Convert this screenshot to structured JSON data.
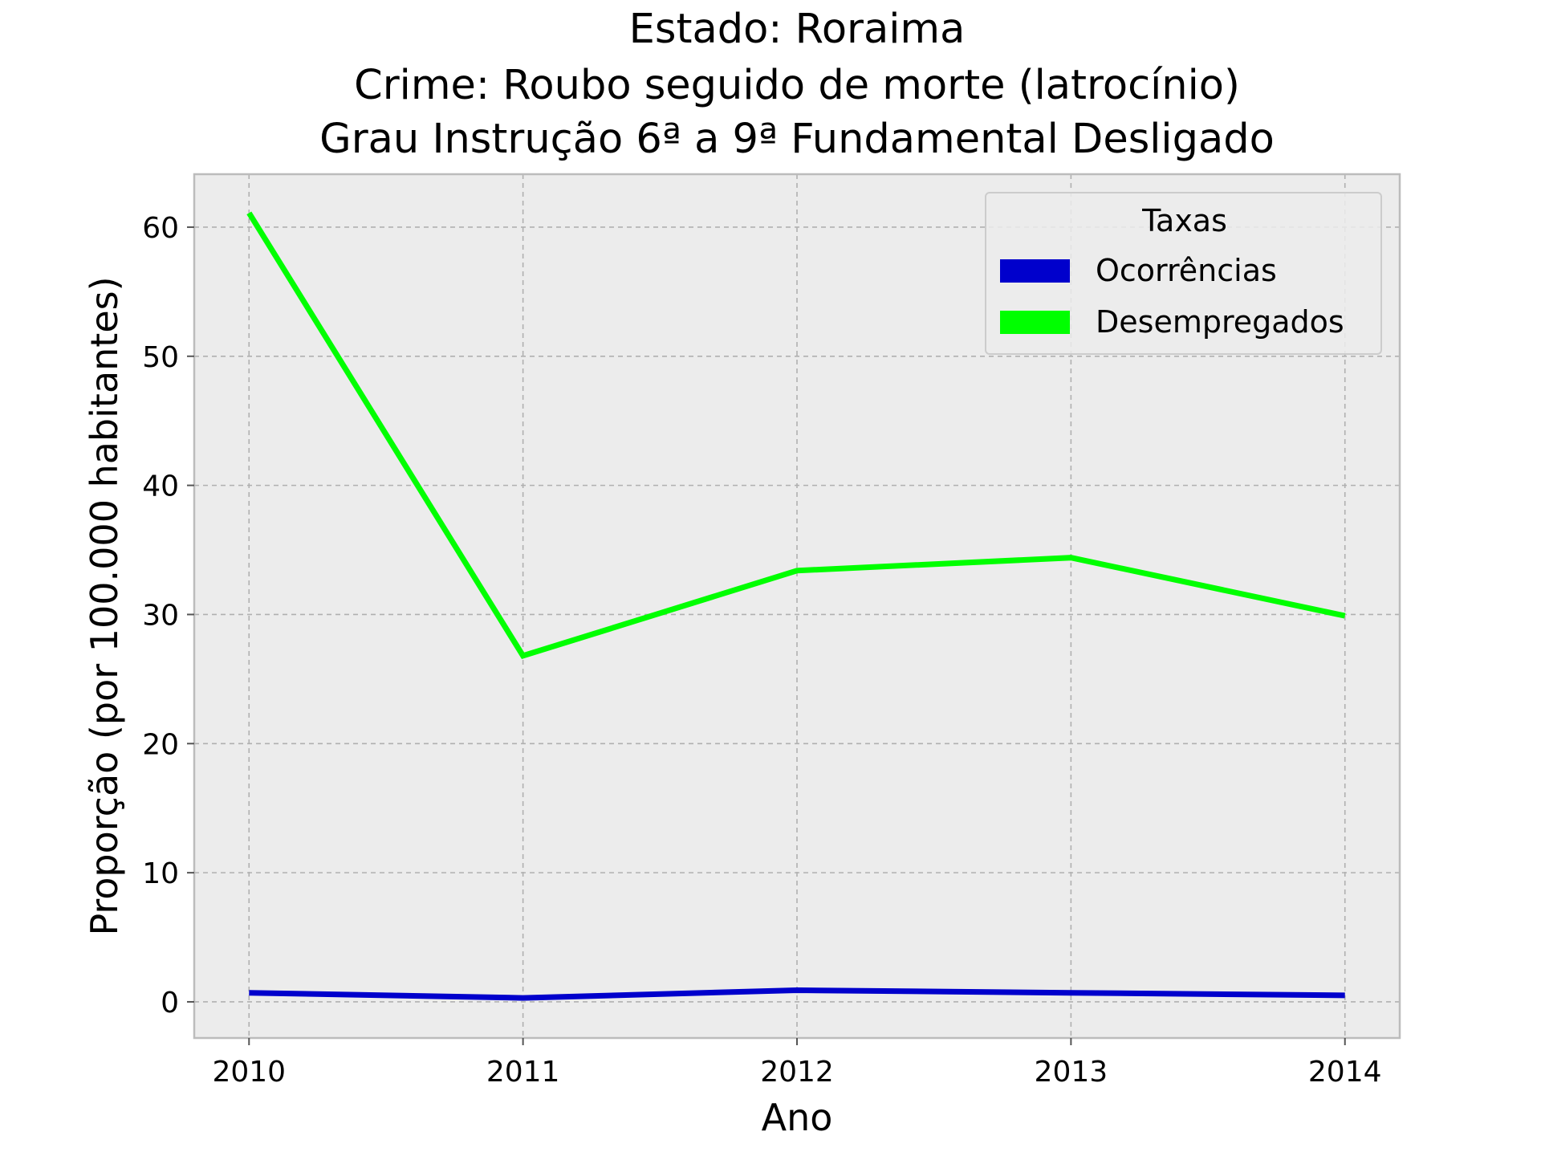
{
  "chart_data": {
    "type": "line",
    "title_lines": [
      "Estado: Roraima",
      "Crime: Roubo seguido de morte (latrocínio)",
      "Grau Instrução  6ª a 9ª Fundamental   Desligado"
    ],
    "xlabel": "Ano",
    "ylabel": "Proporção (por 100.000 habitantes)",
    "x": [
      2010,
      2011,
      2012,
      2013,
      2014
    ],
    "x_tick_labels": [
      "2010",
      "2011",
      "2012",
      "2013",
      "2014"
    ],
    "xlim": [
      2009.8,
      2014.2
    ],
    "ylim": [
      -2.8,
      64.1
    ],
    "y_ticks": [
      0,
      10,
      20,
      30,
      40,
      50,
      60
    ],
    "y_tick_labels": [
      "0",
      "10",
      "20",
      "30",
      "40",
      "50",
      "60"
    ],
    "grid": true,
    "legend": {
      "title": "Taxas",
      "placement": "top-right"
    },
    "series": [
      {
        "name": "Ocorrências",
        "color": "#0000cc",
        "values": [
          0.7,
          0.3,
          0.9,
          0.7,
          0.5
        ]
      },
      {
        "name": "Desempregados",
        "color": "#00ff00",
        "values": [
          61.1,
          26.8,
          33.4,
          34.4,
          29.9
        ]
      }
    ],
    "colors": {
      "plot_background": "#ececec",
      "grid": "#b0b0b0",
      "axes_border": "#bcbcbc"
    }
  }
}
